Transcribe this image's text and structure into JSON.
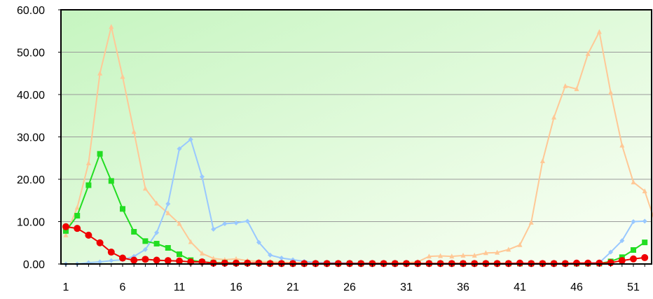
{
  "chart_data": {
    "type": "line",
    "title": "",
    "xlabel": "",
    "ylabel": "",
    "ylim": [
      0,
      60
    ],
    "xlim": [
      1,
      53
    ],
    "y_ticks": [
      "0.00",
      "10.00",
      "20.00",
      "30.00",
      "40.00",
      "50.00",
      "60.00"
    ],
    "x_ticks": [
      "1",
      "6",
      "11",
      "16",
      "21",
      "26",
      "31",
      "36",
      "41",
      "46",
      "51"
    ],
    "grid": true,
    "background": "light green gradient",
    "series": [
      {
        "color": "#FFC896",
        "marker": "triangle",
        "x": [
          1,
          2,
          3,
          4,
          5,
          6,
          7,
          8,
          9,
          10,
          11,
          12,
          13,
          14,
          15,
          16,
          17,
          18,
          19,
          20,
          21,
          22,
          23,
          24,
          25,
          26,
          27,
          28,
          29,
          30,
          31,
          32,
          33,
          34,
          35,
          36,
          37,
          38,
          39,
          40,
          41,
          42,
          43,
          44,
          45,
          46,
          47,
          48,
          49,
          50,
          51,
          52,
          53
        ],
        "values": [
          6.8,
          13.3,
          23.8,
          45.0,
          56.0,
          44.2,
          31.2,
          17.8,
          14.3,
          12.0,
          9.5,
          5.2,
          2.5,
          1.3,
          1.0,
          1.2,
          0.8,
          0.6,
          0.5,
          0.4,
          0.3,
          0.3,
          0.3,
          0.2,
          0.2,
          0.2,
          0.2,
          0.2,
          0.2,
          0.2,
          0.3,
          0.5,
          1.8,
          1.9,
          1.8,
          2.0,
          2.0,
          2.6,
          2.7,
          3.4,
          4.5,
          9.8,
          24.3,
          34.6,
          42.0,
          41.3,
          49.6,
          54.8,
          40.5,
          28.0,
          19.3,
          17.2,
          9.2
        ]
      },
      {
        "color": "#99C8FF",
        "marker": "diamond",
        "x": [
          1,
          2,
          3,
          4,
          5,
          6,
          7,
          8,
          9,
          10,
          11,
          12,
          13,
          14,
          15,
          16,
          17,
          18,
          19,
          20,
          21,
          22,
          23,
          24,
          25,
          26,
          27,
          28,
          29,
          30,
          31,
          32,
          33,
          34,
          35,
          36,
          37,
          38,
          39,
          40,
          41,
          42,
          43,
          44,
          45,
          46,
          47,
          48,
          49,
          50,
          51,
          52
        ],
        "values": [
          0.0,
          0.0,
          0.3,
          0.5,
          0.8,
          1.0,
          1.8,
          3.4,
          7.4,
          14.2,
          27.2,
          29.4,
          20.6,
          8.2,
          9.5,
          9.7,
          10.1,
          5.1,
          2.1,
          1.4,
          1.0,
          0.6,
          0.4,
          0.3,
          0.3,
          0.2,
          0.2,
          0.2,
          0.1,
          0.1,
          0.1,
          0.1,
          0.1,
          0.1,
          0.1,
          0.1,
          0.1,
          0.1,
          0.1,
          0.1,
          0.1,
          0.1,
          0.1,
          0.1,
          0.1,
          0.1,
          0.2,
          0.3,
          2.8,
          5.5,
          10.0,
          10.1
        ]
      },
      {
        "color": "#22DD22",
        "marker": "square",
        "x": [
          1,
          2,
          3,
          4,
          5,
          6,
          7,
          8,
          9,
          10,
          11,
          12,
          13,
          14,
          15,
          16,
          17,
          18,
          19,
          20,
          21,
          22,
          23,
          24,
          25,
          26,
          27,
          28,
          29,
          30,
          31,
          32,
          33,
          34,
          35,
          36,
          37,
          38,
          39,
          40,
          41,
          42,
          43,
          44,
          45,
          46,
          47,
          48,
          49,
          50,
          51,
          52
        ],
        "values": [
          7.8,
          11.4,
          18.6,
          26.0,
          19.6,
          13.0,
          7.6,
          5.4,
          4.8,
          3.8,
          2.3,
          0.9,
          0.5,
          0.3,
          0.3,
          0.2,
          0.2,
          0.2,
          0.1,
          0.1,
          0.1,
          0.1,
          0.1,
          0.1,
          0.1,
          0.1,
          0.1,
          0.1,
          0.1,
          0.1,
          0.1,
          0.1,
          0.1,
          0.1,
          0.1,
          0.1,
          0.1,
          0.1,
          0.1,
          0.1,
          0.1,
          0.1,
          0.1,
          0.1,
          0.1,
          0.1,
          0.1,
          0.1,
          0.6,
          1.6,
          3.3,
          5.1
        ]
      },
      {
        "color": "#EE0000",
        "marker": "circle",
        "x": [
          1,
          2,
          3,
          4,
          5,
          6,
          7,
          8,
          9,
          10,
          11,
          12,
          13,
          14,
          15,
          16,
          17,
          18,
          19,
          20,
          21,
          22,
          23,
          24,
          25,
          26,
          27,
          28,
          29,
          30,
          31,
          32,
          33,
          34,
          35,
          36,
          37,
          38,
          39,
          40,
          41,
          42,
          43,
          44,
          45,
          46,
          47,
          48,
          49,
          50,
          51,
          52
        ],
        "values": [
          8.8,
          8.4,
          6.8,
          5.0,
          2.8,
          1.4,
          0.9,
          1.1,
          0.9,
          0.8,
          0.7,
          0.5,
          0.5,
          0.2,
          0.2,
          0.2,
          0.2,
          0.2,
          0.1,
          0.1,
          0.1,
          0.1,
          0.1,
          0.1,
          0.1,
          0.1,
          0.1,
          0.1,
          0.1,
          0.1,
          0.1,
          0.1,
          0.1,
          0.1,
          0.1,
          0.1,
          0.1,
          0.1,
          0.1,
          0.1,
          0.2,
          0.1,
          0.1,
          0.1,
          0.1,
          0.2,
          0.2,
          0.2,
          0.3,
          0.8,
          1.2,
          1.5
        ]
      }
    ]
  }
}
